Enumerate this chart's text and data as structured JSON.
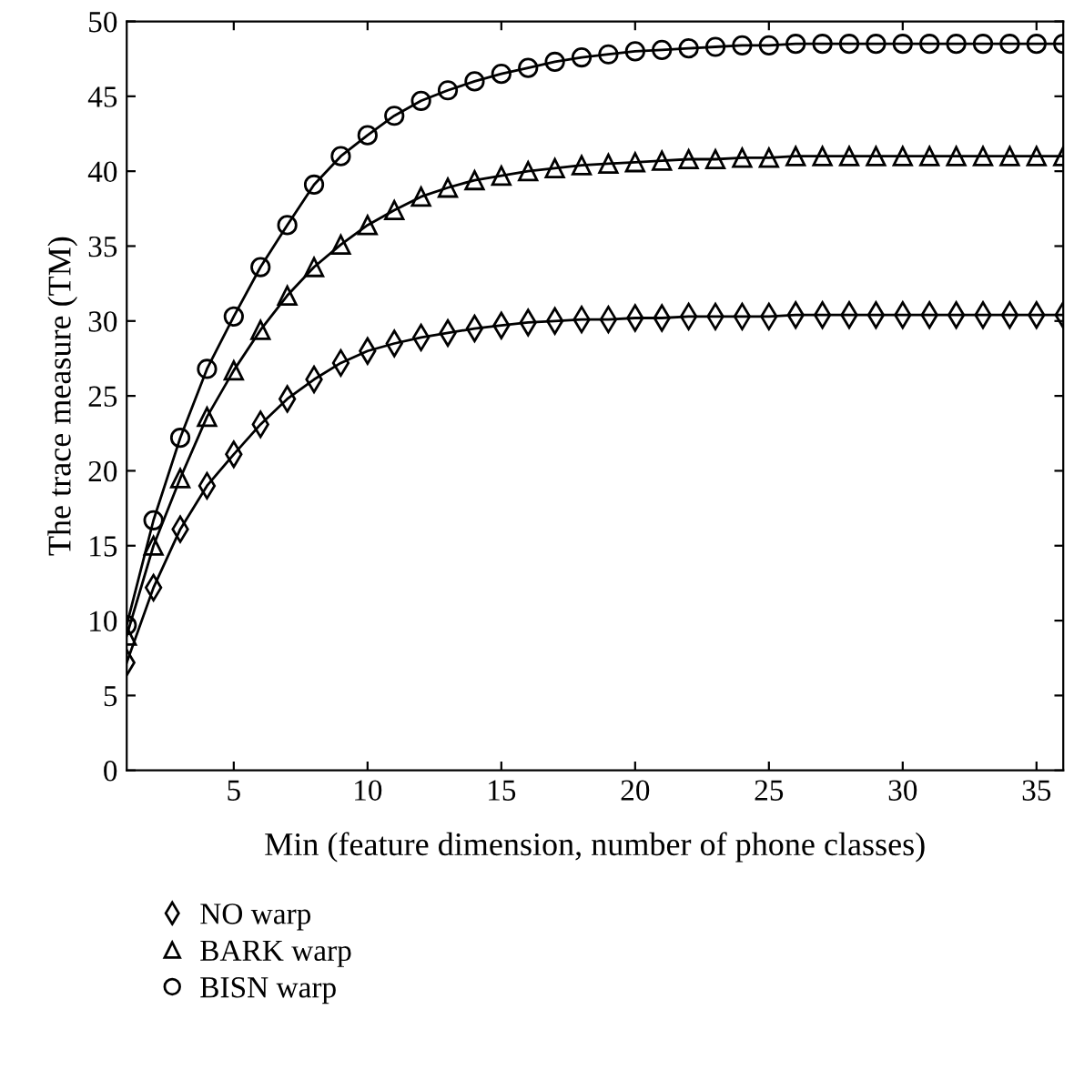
{
  "chart_data": {
    "type": "line",
    "xlabel": "Min (feature dimension, number of phone classes)",
    "ylabel": "The trace measure (TM)",
    "x": [
      1,
      2,
      3,
      4,
      5,
      6,
      7,
      8,
      9,
      10,
      11,
      12,
      13,
      14,
      15,
      16,
      17,
      18,
      19,
      20,
      21,
      22,
      23,
      24,
      25,
      26,
      27,
      28,
      29,
      30,
      31,
      32,
      33,
      34,
      35,
      36
    ],
    "series": [
      {
        "name": "NO warp",
        "color": "#000000",
        "marker": "diamond",
        "values": [
          7.2,
          12.2,
          16.1,
          19,
          21.1,
          23.1,
          24.8,
          26.1,
          27.2,
          28,
          28.5,
          28.9,
          29.2,
          29.5,
          29.7,
          29.9,
          30,
          30.1,
          30.1,
          30.2,
          30.2,
          30.3,
          30.3,
          30.3,
          30.3,
          30.4,
          30.4,
          30.4,
          30.4,
          30.4,
          30.4,
          30.4,
          30.4,
          30.4,
          30.4,
          30.4
        ]
      },
      {
        "name": "BARK warp",
        "color": "#000000",
        "marker": "triangle",
        "values": [
          9,
          15,
          19.5,
          23.6,
          26.7,
          29.4,
          31.7,
          33.6,
          35.1,
          36.4,
          37.4,
          38.3,
          38.9,
          39.4,
          39.7,
          40,
          40.2,
          40.4,
          40.5,
          40.6,
          40.7,
          40.8,
          40.8,
          40.9,
          40.9,
          41,
          41,
          41,
          41,
          41,
          41,
          41,
          41,
          41,
          41,
          41
        ]
      },
      {
        "name": "BISN warp",
        "color": "#000000",
        "marker": "circle",
        "values": [
          9.7,
          16.7,
          22.2,
          26.8,
          30.3,
          33.6,
          36.4,
          39.1,
          41,
          42.4,
          43.7,
          44.7,
          45.4,
          46,
          46.5,
          46.9,
          47.3,
          47.6,
          47.8,
          48,
          48.1,
          48.2,
          48.3,
          48.4,
          48.4,
          48.5,
          48.5,
          48.5,
          48.5,
          48.5,
          48.5,
          48.5,
          48.5,
          48.5,
          48.5,
          48.5
        ]
      }
    ],
    "xlim": [
      1,
      36
    ],
    "xticks": [
      5,
      10,
      15,
      20,
      25,
      30,
      35
    ],
    "ylim": [
      0,
      50
    ],
    "yticks": [
      0,
      5,
      10,
      15,
      20,
      25,
      30,
      35,
      40,
      45,
      50
    ],
    "grid": false,
    "legend": "bottom left",
    "line_style": "solid"
  }
}
